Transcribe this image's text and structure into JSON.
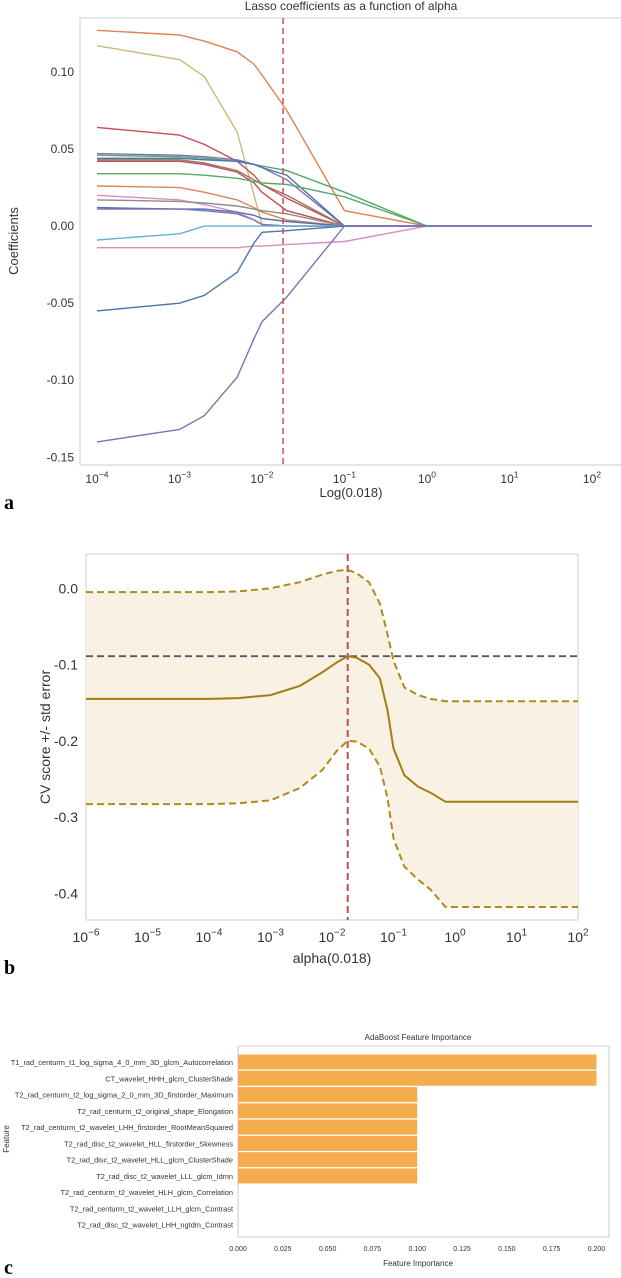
{
  "chart_data": [
    {
      "type": "line",
      "panel_label": "a",
      "title": "Lasso coefficients as a function of alpha",
      "xlabel": "Log(0.018)",
      "ylabel": "Coefficients",
      "xscale": "log",
      "xlim": [
        0.0001,
        100
      ],
      "ylim": [
        -0.155,
        0.135
      ],
      "xticks": [
        {
          "v": 0.0001,
          "label": "10^-4"
        },
        {
          "v": 0.001,
          "label": "10^-3"
        },
        {
          "v": 0.01,
          "label": "10^-2"
        },
        {
          "v": 0.1,
          "label": "10^-1"
        },
        {
          "v": 1,
          "label": "10^0"
        },
        {
          "v": 10,
          "label": "10^1"
        },
        {
          "v": 100,
          "label": "10^2"
        }
      ],
      "yticks": [
        0.1,
        0.05,
        0.0,
        -0.05,
        -0.1,
        -0.15
      ],
      "ytick_labels": [
        "0.10",
        "0.05",
        "0.00",
        "-0.05",
        "-0.10",
        "-0.15"
      ],
      "vline": 0.018,
      "x": [
        0.0001,
        0.001,
        0.002,
        0.005,
        0.008,
        0.01,
        0.02,
        0.1,
        1,
        100
      ],
      "series": [
        {
          "name": "s1",
          "color": "#dd8452",
          "values": [
            0.127,
            0.124,
            0.12,
            0.113,
            0.105,
            0.098,
            0.075,
            0.01,
            0,
            0
          ]
        },
        {
          "name": "s2",
          "color": "#ccb974",
          "values": [
            0.117,
            0.108,
            0.097,
            0.061,
            0.02,
            0.001,
            0,
            0,
            0,
            0
          ]
        },
        {
          "name": "s3",
          "color": "#c44e52",
          "values": [
            0.064,
            0.059,
            0.053,
            0.042,
            0.033,
            0.027,
            0.018,
            0,
            0,
            0
          ]
        },
        {
          "name": "s4",
          "color": "#8172b3",
          "values": [
            0.047,
            0.046,
            0.045,
            0.043,
            0.04,
            0.038,
            0.03,
            0,
            0,
            0
          ]
        },
        {
          "name": "s5",
          "color": "#55a868",
          "values": [
            0.046,
            0.045,
            0.044,
            0.042,
            0.04,
            0.039,
            0.036,
            0.022,
            0,
            0
          ]
        },
        {
          "name": "s6",
          "color": "#4c72b0",
          "values": [
            0.044,
            0.044,
            0.043,
            0.042,
            0.04,
            0.038,
            0.033,
            0,
            0,
            0
          ]
        },
        {
          "name": "s7",
          "color": "#937860",
          "values": [
            0.043,
            0.043,
            0.041,
            0.036,
            0.03,
            0.027,
            0.02,
            0,
            0,
            0
          ]
        },
        {
          "name": "s8",
          "color": "#c44e52",
          "values": [
            0.042,
            0.042,
            0.04,
            0.035,
            0.028,
            0.022,
            0.01,
            0,
            0,
            0
          ]
        },
        {
          "name": "s9",
          "color": "#55a868",
          "values": [
            0.034,
            0.034,
            0.033,
            0.031,
            0.029,
            0.028,
            0.027,
            0.019,
            0,
            0
          ]
        },
        {
          "name": "s10",
          "color": "#dd8452",
          "values": [
            0.026,
            0.025,
            0.022,
            0.017,
            0.012,
            0.009,
            0.004,
            0,
            0,
            0
          ]
        },
        {
          "name": "s11",
          "color": "#da8bc3",
          "values": [
            0.02,
            0.017,
            0.014,
            0.009,
            0.004,
            0.001,
            0,
            0,
            0,
            0
          ]
        },
        {
          "name": "s12",
          "color": "#8c8c8c",
          "values": [
            0.017,
            0.016,
            0.015,
            0.013,
            0.011,
            0.01,
            0.008,
            0,
            0,
            0
          ]
        },
        {
          "name": "s13",
          "color": "#4c72b0",
          "values": [
            0.012,
            0.011,
            0.011,
            0.009,
            0.007,
            0.005,
            0.003,
            0,
            0,
            0
          ]
        },
        {
          "name": "s14",
          "color": "#8172b3",
          "values": [
            0.011,
            0.011,
            0.01,
            0.008,
            0.004,
            0.001,
            0,
            0,
            0,
            0
          ]
        },
        {
          "name": "s15",
          "color": "#64b5cd",
          "values": [
            -0.009,
            -0.005,
            0,
            0,
            0,
            0,
            0,
            0,
            0,
            0
          ]
        },
        {
          "name": "s16",
          "color": "#da8bc3",
          "values": [
            -0.014,
            -0.014,
            -0.014,
            -0.014,
            -0.013,
            -0.013,
            -0.012,
            -0.01,
            0,
            0
          ]
        },
        {
          "name": "s17",
          "color": "#4c72b0",
          "values": [
            -0.055,
            -0.05,
            -0.045,
            -0.03,
            -0.011,
            -0.004,
            -0.003,
            0,
            0,
            0
          ]
        },
        {
          "name": "s18",
          "color": "#8172b3",
          "values": [
            -0.14,
            -0.132,
            -0.123,
            -0.098,
            -0.073,
            -0.062,
            -0.046,
            0,
            0,
            0
          ]
        }
      ]
    },
    {
      "type": "line",
      "panel_label": "b",
      "title": "",
      "xlabel": "alpha(0.018)",
      "ylabel": "CV score +/- std error",
      "xscale": "log",
      "xlim": [
        1e-06,
        100
      ],
      "ylim": [
        -0.435,
        0.045
      ],
      "xticks": [
        {
          "v": 1e-06,
          "label": "10^-6"
        },
        {
          "v": 1e-05,
          "label": "10^-5"
        },
        {
          "v": 0.0001,
          "label": "10^-4"
        },
        {
          "v": 0.001,
          "label": "10^-3"
        },
        {
          "v": 0.01,
          "label": "10^-2"
        },
        {
          "v": 0.1,
          "label": "10^-1"
        },
        {
          "v": 1,
          "label": "10^0"
        },
        {
          "v": 10,
          "label": "10^1"
        },
        {
          "v": 100,
          "label": "10^2"
        }
      ],
      "yticks": [
        0.0,
        -0.1,
        -0.2,
        -0.3,
        -0.4
      ],
      "ytick_labels": [
        "0.0",
        "-0.1",
        "-0.2",
        "-0.3",
        "-0.4"
      ],
      "vline": 0.018,
      "hline": -0.089,
      "x": [
        1e-06,
        0.0001,
        0.0003,
        0.001,
        0.003,
        0.007,
        0.012,
        0.018,
        0.025,
        0.04,
        0.06,
        0.08,
        0.1,
        0.15,
        0.25,
        0.4,
        0.7,
        1,
        100
      ],
      "mean": [
        -0.145,
        -0.145,
        -0.144,
        -0.14,
        -0.128,
        -0.11,
        -0.097,
        -0.089,
        -0.091,
        -0.1,
        -0.118,
        -0.16,
        -0.21,
        -0.245,
        -0.26,
        -0.268,
        -0.28,
        -0.28,
        -0.28
      ],
      "upper": [
        -0.005,
        -0.005,
        -0.004,
        0.0,
        0.008,
        0.018,
        0.023,
        0.024,
        0.02,
        0.008,
        -0.02,
        -0.06,
        -0.095,
        -0.13,
        -0.14,
        -0.145,
        -0.148,
        -0.148,
        -0.148
      ],
      "lower": [
        -0.283,
        -0.283,
        -0.282,
        -0.278,
        -0.262,
        -0.238,
        -0.213,
        -0.2,
        -0.201,
        -0.21,
        -0.234,
        -0.275,
        -0.328,
        -0.365,
        -0.382,
        -0.395,
        -0.418,
        -0.418,
        -0.418
      ]
    },
    {
      "type": "bar",
      "orientation": "horizontal",
      "panel_label": "c",
      "title": "AdaBoost Feature Importance",
      "xlabel": "Feature Importance",
      "ylabel": "Feature",
      "xlim": [
        0,
        0.207
      ],
      "xticks": [
        0.0,
        0.025,
        0.05,
        0.075,
        0.1,
        0.125,
        0.15,
        0.175,
        0.2
      ],
      "xtick_labels": [
        "0.000",
        "0.025",
        "0.050",
        "0.075",
        "0.100",
        "0.125",
        "0.150",
        "0.175",
        "0.200"
      ],
      "bar_color": "#f5ac4f",
      "categories": [
        "T1_rad_centurm_t1_log_sigma_4_0_mm_3D_glcm_Autocorrelation",
        "CT_wavelet_HHH_glcm_ClusterShade",
        "T2_rad_centurm_t2_log_sigma_2_0_mm_3D_firstorder_Maximum",
        "T2_rad_centurm_t2_original_shape_Elongation",
        "T2_rad_centurm_t2_wavelet_LHH_firstorder_RootMeanSquared",
        "T2_rad_disc_t2_wavelet_HLL_firstorder_Skewness",
        "T2_rad_disc_t2_wavelet_HLL_glcm_ClusterShade",
        "T2_rad_disc_t2_wavelet_LLL_glcm_Idmn",
        "T2_rad_centurm_t2_wavelet_HLH_glcm_Correlation",
        "T2_rad_centurm_t2_wavelet_LLH_glcm_Contrast",
        "T2_rad_disc_t2_wavelet_LHH_ngtdm_Contrast"
      ],
      "values": [
        0.2,
        0.2,
        0.1,
        0.1,
        0.1,
        0.1,
        0.1,
        0.1,
        0,
        0,
        0
      ]
    }
  ]
}
